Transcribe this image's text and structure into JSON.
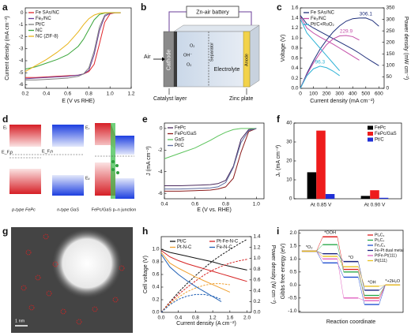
{
  "chart_data": [
    {
      "panel": "a",
      "type": "line",
      "xlabel": "E (V vs RHE)",
      "ylabel": "Current density (mA cm⁻²)",
      "x": [
        0.2,
        0.3,
        0.4,
        0.5,
        0.6,
        0.7,
        0.75,
        0.8,
        0.85,
        0.9,
        0.95,
        1.0,
        1.05,
        1.1
      ],
      "xlim": [
        0.2,
        1.2
      ],
      "xticks": [
        0.2,
        0.4,
        0.6,
        0.8,
        {
          "value": 1.0,
          "label": "1.0"
        },
        1.2
      ],
      "ylim": [
        -6.3,
        0.4
      ],
      "yticks": [
        0,
        -1,
        -2,
        -3,
        -4,
        -5,
        -6
      ],
      "legend": "upper left",
      "series": [
        {
          "name": "Fe SAs/NC",
          "color": "#e0262b",
          "values": [
            -5.4,
            -5.4,
            -5.35,
            -5.3,
            -5.25,
            -5.2,
            -5.1,
            -4.9,
            -4.3,
            -2.6,
            -0.8,
            -0.1,
            0,
            0
          ]
        },
        {
          "name": "Fe₂/NC",
          "color": "#6a3d9a",
          "values": [
            -5.5,
            -5.45,
            -5.4,
            -5.35,
            -5.3,
            -5.2,
            -5.1,
            -4.8,
            -3.5,
            -1.5,
            -0.3,
            -0.05,
            0,
            0
          ]
        },
        {
          "name": "Pt/C",
          "color": "#7f7f7f",
          "values": [
            -5.6,
            -5.6,
            -5.55,
            -5.5,
            -5.45,
            -5.3,
            -5.1,
            -4.6,
            -3.2,
            -1.2,
            -0.2,
            0,
            0,
            0
          ]
        },
        {
          "name": "NC",
          "color": "#3aa63a",
          "values": [
            -4.7,
            -4.5,
            -4.2,
            -3.9,
            -3.5,
            -2.8,
            -2.2,
            -1.4,
            -0.6,
            -0.15,
            -0.03,
            0,
            0,
            0
          ]
        },
        {
          "name": "NC (ZIF-8)",
          "color": "#e8b317",
          "values": [
            -4.9,
            -4.4,
            -3.9,
            -3.3,
            -2.6,
            -1.6,
            -1.0,
            -0.5,
            -0.2,
            -0.05,
            0,
            0,
            0,
            0
          ]
        }
      ]
    },
    {
      "panel": "c",
      "type": "line",
      "xlabel": "Current density (mA cm⁻²)",
      "ylabel": "Voltage (V)",
      "y2label": "Power density (mW cm⁻²)",
      "x": [
        0,
        50,
        100,
        150,
        200,
        250,
        300,
        350,
        400,
        450,
        500,
        550,
        600
      ],
      "xlim": [
        0,
        640
      ],
      "xticks": [
        0,
        100,
        200,
        300,
        400,
        500,
        600
      ],
      "ylim": [
        0,
        1.6
      ],
      "yticks": [
        {
          "value": 0,
          "label": "0.0"
        },
        0.2,
        0.4,
        0.6,
        0.8,
        {
          "value": 1.0,
          "label": "1.0"
        },
        1.2,
        1.4,
        1.6
      ],
      "y2lim": [
        0,
        350
      ],
      "y2ticks": [
        0,
        50,
        100,
        150,
        200,
        250,
        300,
        350
      ],
      "legend": "upper left",
      "series": [
        {
          "name": "Fe SAs/NC",
          "color": "#1f2f7a",
          "values": [
            1.45,
            1.28,
            1.2,
            1.13,
            1.06,
            0.99,
            0.92,
            0.85,
            0.78,
            0.7,
            0.612,
            0.53,
            0.45
          ],
          "y2_values": [
            0,
            65,
            120,
            170,
            210,
            245,
            272,
            292,
            303,
            306,
            306.1,
            295,
            270
          ],
          "peak_label": "306.1"
        },
        {
          "name": "Fe₂/NC",
          "color": "#c44da8",
          "values": [
            1.42,
            1.2,
            1.1,
            1.02,
            0.95,
            0.88,
            0.8,
            0.72,
            0.64,
            0.56,
            null,
            null,
            null
          ],
          "y2_values": [
            0,
            60,
            110,
            153,
            190,
            215,
            228,
            229.9,
            225,
            210,
            null,
            null,
            null
          ],
          "peak_label": "229.9"
        },
        {
          "name": "Pt/C+RuO₂",
          "color": "#2fb3d6",
          "values": [
            1.38,
            1.1,
            0.95,
            0.8,
            0.65,
            0.5,
            0.35,
            null,
            null,
            null,
            null,
            null,
            null
          ],
          "y2_values": [
            0,
            55,
            85,
            96.3,
            90,
            75,
            55,
            null,
            null,
            null,
            null,
            null,
            null
          ],
          "peak_label": "96.3"
        }
      ]
    },
    {
      "panel": "e",
      "type": "line",
      "xlabel": "E (V vs. RHE)",
      "ylabel": "J (mA cm⁻²)",
      "x": [
        0.4,
        0.5,
        0.6,
        0.7,
        0.75,
        0.8,
        0.85,
        0.9,
        0.95,
        1.0
      ],
      "xlim": [
        0.4,
        1.05
      ],
      "xticks": [
        0.4,
        0.6,
        0.8,
        {
          "value": 1.0,
          "label": "1.0"
        }
      ],
      "ylim": [
        -6.5,
        0.5
      ],
      "yticks": [
        0,
        -2,
        -4,
        -6
      ],
      "legend": "upper left",
      "series": [
        {
          "name": "FePc",
          "color": "#4b2a5e",
          "values": [
            -5.3,
            -5.3,
            -5.25,
            -5.2,
            -5.1,
            -4.8,
            -3.5,
            -1.0,
            -0.1,
            0
          ]
        },
        {
          "name": "FePc/GaS",
          "color": "#8b1a1a",
          "values": [
            -5.8,
            -5.8,
            -5.75,
            -5.7,
            -5.6,
            -5.4,
            -4.6,
            -2.2,
            -0.3,
            0
          ]
        },
        {
          "name": "GaS",
          "color": "#5cc45c",
          "values": [
            -2.8,
            -2.3,
            -1.8,
            -1.1,
            -0.7,
            -0.35,
            -0.1,
            0,
            0,
            0
          ]
        },
        {
          "name": "Pt/C",
          "color": "#5d6c9e",
          "values": [
            -5.6,
            -5.6,
            -5.55,
            -5.5,
            -5.4,
            -5.0,
            -3.6,
            -1.3,
            -0.2,
            0
          ]
        }
      ]
    },
    {
      "panel": "f",
      "type": "bar",
      "ylabel": "Jₖ (mA cm⁻²)",
      "categories": [
        "At 0.85 V",
        "At 0.90 V"
      ],
      "ylim": [
        0,
        40
      ],
      "yticks": [
        0,
        10,
        20,
        30,
        40
      ],
      "legend": "upper right",
      "series": [
        {
          "name": "FePc",
          "color": "#000000",
          "values": [
            14,
            1.5
          ]
        },
        {
          "name": "FePc/GaS",
          "color": "#ee1c1c",
          "values": [
            36,
            4.5
          ]
        },
        {
          "name": "Pt/C",
          "color": "#1f2fd6",
          "values": [
            2.5,
            0.5
          ]
        }
      ]
    },
    {
      "panel": "h",
      "type": "line",
      "xlabel": "Current density (A cm⁻²)",
      "ylabel": "Cell voltage (V)",
      "y2label": "Power density (W cm⁻²)",
      "x": [
        0,
        0.2,
        0.4,
        0.6,
        0.8,
        1.0,
        1.2,
        1.4,
        1.6,
        1.8,
        2.0
      ],
      "xlim": [
        0,
        2.1
      ],
      "xticks": [
        {
          "value": 0,
          "label": "0.0"
        },
        0.4,
        0.8,
        1.2,
        1.6,
        {
          "value": 2.0,
          "label": "2.0"
        }
      ],
      "ylim": [
        0,
        1.2
      ],
      "yticks": [
        {
          "value": 0,
          "label": "0.0"
        },
        0.2,
        0.4,
        0.6,
        0.8,
        {
          "value": 1.0,
          "label": "1.0"
        }
      ],
      "y2lim": [
        0,
        1.4
      ],
      "y2ticks": [
        {
          "value": 0,
          "label": "0.0"
        },
        0.2,
        0.4,
        0.6,
        0.8,
        {
          "value": 1.0,
          "label": "1.0"
        },
        1.2,
        1.4
      ],
      "legend": "upper right",
      "series": [
        {
          "name": "Pt/C",
          "color": "#111111",
          "values": [
            1.0,
            0.95,
            0.92,
            0.89,
            0.86,
            0.83,
            0.8,
            0.76,
            0.73,
            0.7,
            0.67
          ],
          "y2_values": [
            0,
            0.19,
            0.37,
            0.53,
            0.68,
            0.82,
            0.95,
            1.06,
            1.16,
            1.26,
            1.35
          ]
        },
        {
          "name": "Pt-Fe-N-C",
          "color": "#d62222",
          "values": [
            0.98,
            0.88,
            0.82,
            0.77,
            0.73,
            0.69,
            0.65,
            0.61,
            0.57,
            0.53,
            0.49
          ],
          "y2_values": [
            0,
            0.18,
            0.33,
            0.46,
            0.58,
            0.69,
            0.78,
            0.85,
            0.91,
            0.95,
            0.98
          ]
        },
        {
          "name": "Pt-N-C",
          "color": "#f0a030",
          "values": [
            0.95,
            0.78,
            0.7,
            0.63,
            0.56,
            0.5,
            0.44,
            0.38,
            0.32,
            null,
            null
          ],
          "y2_values": [
            0,
            0.16,
            0.28,
            0.38,
            0.45,
            0.5,
            0.53,
            0.53,
            0.51,
            null,
            null
          ]
        },
        {
          "name": "Fe-N-C",
          "color": "#1f5fb4",
          "values": [
            0.92,
            0.72,
            0.6,
            0.5,
            0.41,
            0.33,
            0.25,
            0.17,
            null,
            null,
            null
          ],
          "y2_values": [
            0,
            0.14,
            0.24,
            0.3,
            0.33,
            0.33,
            0.3,
            0.24,
            null,
            null,
            null
          ]
        }
      ]
    },
    {
      "panel": "i",
      "type": "step",
      "xlabel": "Reaction coordinate",
      "ylabel": "Gibbs free energy (eV)",
      "categories": [
        "*O₂",
        "*OOH",
        "*O",
        "*OH",
        "*+2H₂O"
      ],
      "ylim": [
        -1.05,
        2.1
      ],
      "yticks": [
        {
          "value": -1.0,
          "label": "-1.0"
        },
        -0.5,
        {
          "value": 0,
          "label": "0.0"
        },
        0.5,
        {
          "value": 1.0,
          "label": "1.0"
        },
        1.5,
        {
          "value": 2.0,
          "label": "2.0"
        }
      ],
      "legend": "upper right",
      "series": [
        {
          "name": "Pt₃C₃",
          "color": "#e02020",
          "values": [
            1.3,
            1.85,
            0.6,
            -0.5,
            0
          ]
        },
        {
          "name": "Pt₂C₄",
          "color": "#2aa84a",
          "values": [
            1.3,
            1.55,
            0.5,
            -0.4,
            0
          ]
        },
        {
          "name": "Fe₂C₄",
          "color": "#2050d0",
          "values": [
            1.3,
            0.85,
            0.3,
            -0.75,
            0
          ]
        },
        {
          "name": "Fe-Pt dual metal",
          "color": "#1a237e",
          "values": [
            1.3,
            1.2,
            0.9,
            -0.2,
            0
          ]
        },
        {
          "name": "PtFe-Pt(111)",
          "color": "#e060c0",
          "values": [
            1.3,
            1.0,
            -0.5,
            -0.6,
            0
          ]
        },
        {
          "name": "Pt(111)",
          "color": "#e8c020",
          "values": [
            1.3,
            1.1,
            0.7,
            -0.05,
            0
          ]
        }
      ]
    }
  ],
  "diagram_b": {
    "panel": "b",
    "title": "Zn-air battery",
    "air": "Air",
    "cathode": "Cathode",
    "separator": "Separator",
    "electrolyte": "Electrolyte",
    "anode": "Anode",
    "catalyst_layer": "Catalyst layer",
    "zinc_plate": "Zinc plate",
    "species": [
      "O₂",
      "OH⁻",
      "O₂"
    ]
  },
  "diagram_d": {
    "panel": "d",
    "left_levels": [
      "Eᵢ",
      "E_F,p"
    ],
    "middle_levels": [
      "E꜀",
      "E_F,n",
      "Eᵥ"
    ],
    "captions": [
      "p-type FePc",
      "n-type GaS",
      "FePc/GaS p–n junction"
    ]
  },
  "image_g": {
    "panel": "g",
    "scale_bar": "1 nm"
  }
}
